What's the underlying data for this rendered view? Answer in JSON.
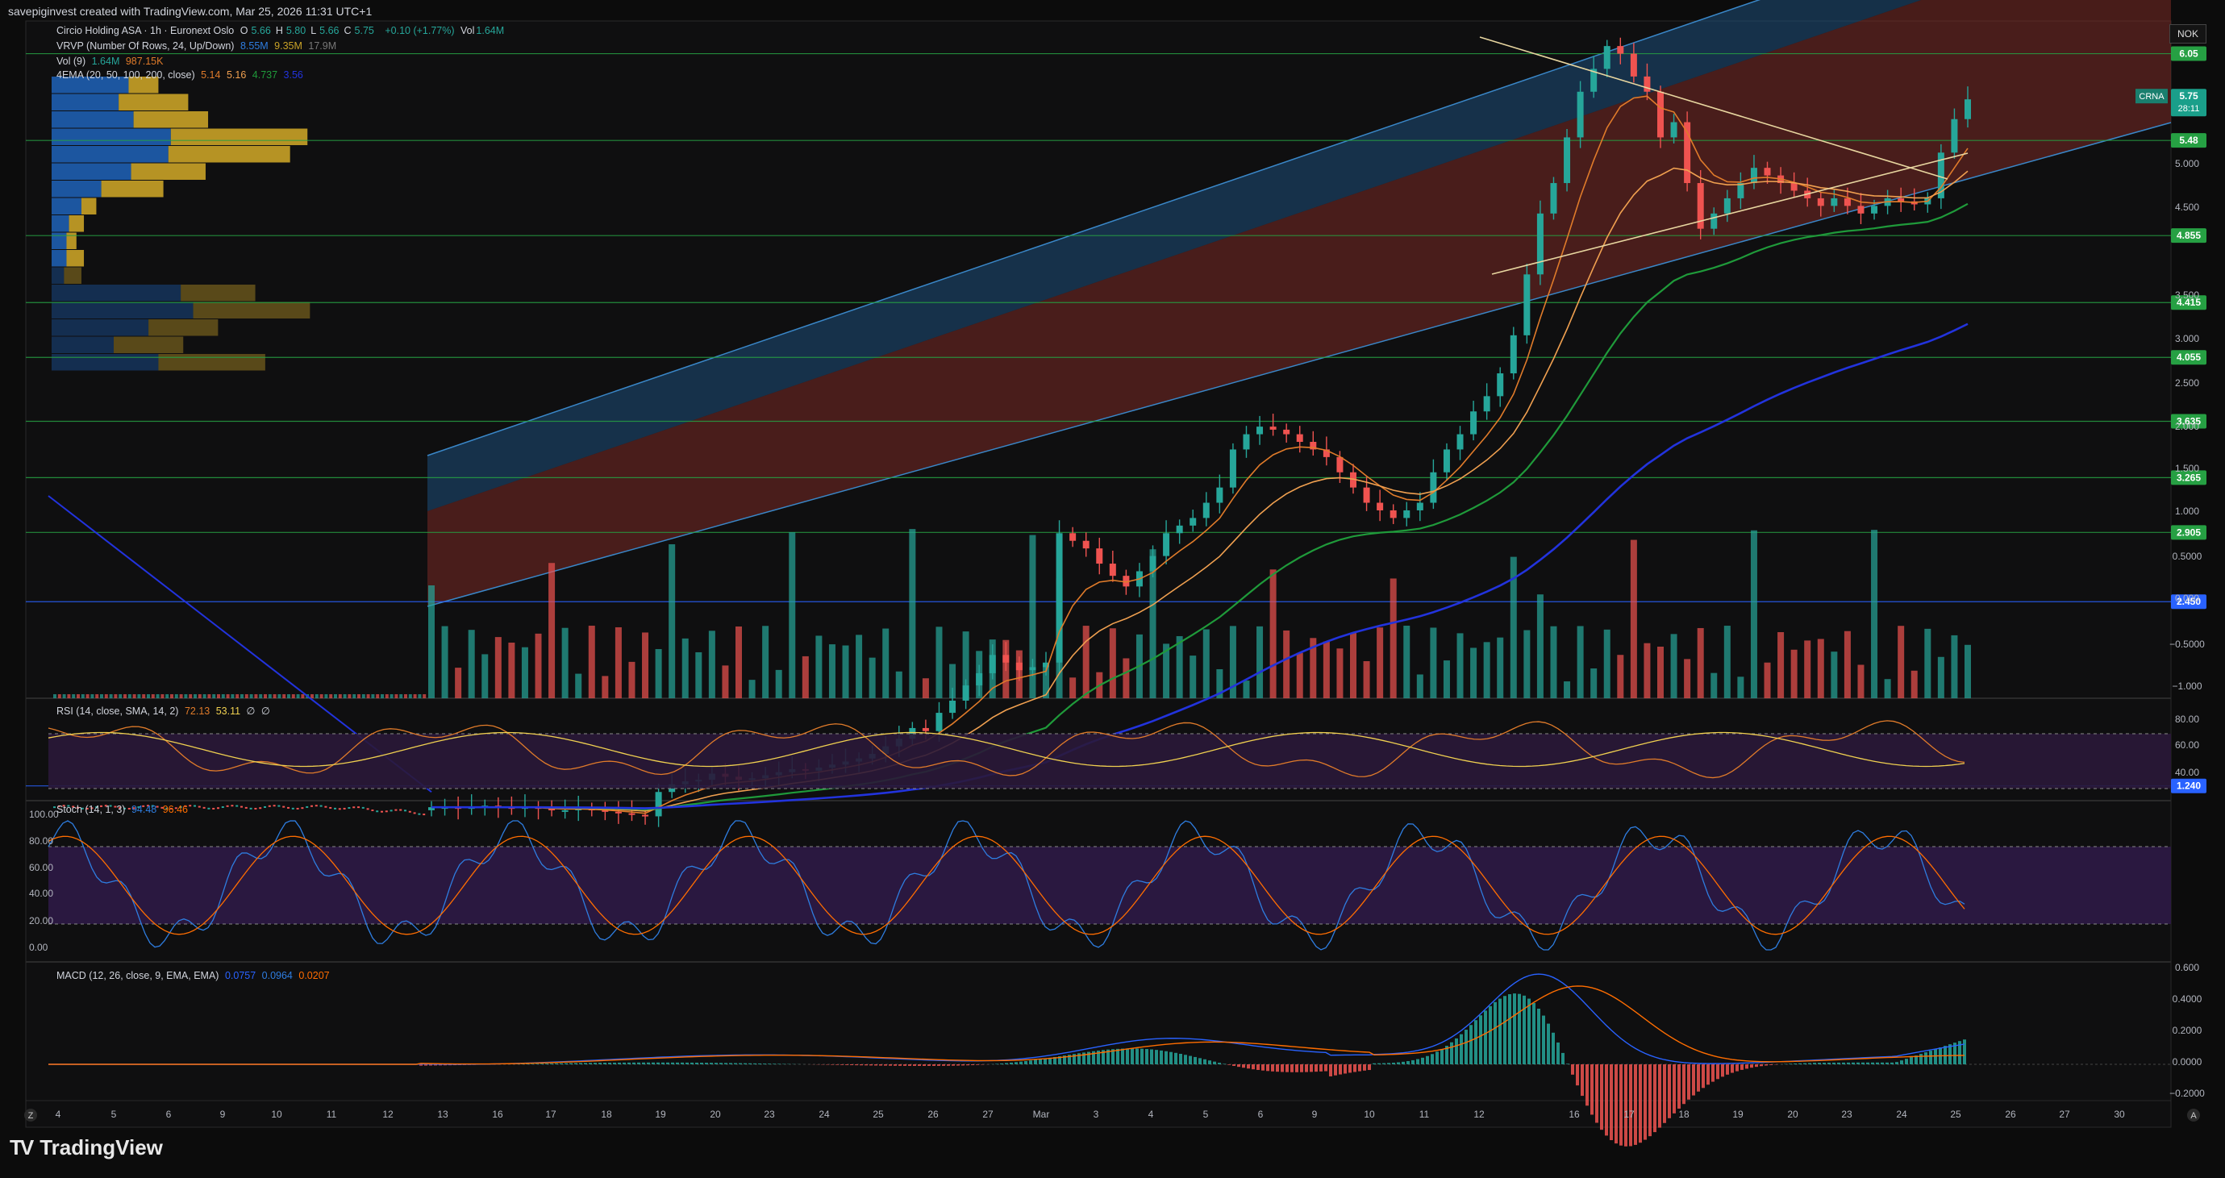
{
  "header": {
    "created_by": "savepiginvest created with TradingView.com, Mar 25, 2026 11:31 UTC+1"
  },
  "symbol": {
    "title": "Circio Holding ASA · 1h · Euronext Oslo",
    "ohlc": [
      {
        "k": "O",
        "v": "5.66"
      },
      {
        "k": "H",
        "v": "5.80"
      },
      {
        "k": "L",
        "v": "5.66"
      },
      {
        "k": "C",
        "v": "5.75"
      }
    ],
    "change": "+0.10 (+1.77%)",
    "vol_label": "Vol",
    "vol_value": "1.64M",
    "currency": "NOK",
    "ticker": "CRNA",
    "last_price": "5.75",
    "countdown": "28:11"
  },
  "indicators": {
    "vrvp": {
      "label": "VRVP (Number Of Rows, 24, Up/Down)",
      "v1": "8.55M",
      "v2": "9.35M",
      "v3": "17.9M"
    },
    "vol": {
      "label": "Vol (9)",
      "v1": "1.64M",
      "v2": "987.15K"
    },
    "ema": {
      "label": "4EMA (20, 50, 100, 200, close)",
      "v1": "5.14",
      "v2": "5.16",
      "v3": "4.737",
      "v4": "3.56"
    },
    "rsi": {
      "label": "RSI (14, close, SMA, 14, 2)",
      "v1": "72.13",
      "v2": "53.11",
      "v3": "∅",
      "v4": "∅"
    },
    "stoch": {
      "label": "Stoch (14, 1, 3)",
      "v1": "94.48",
      "v2": "96.46"
    },
    "macd": {
      "label": "MACD (12, 26, close, 9, EMA, EMA)",
      "v1": "0.0757",
      "v2": "0.0964",
      "v3": "0.0207"
    }
  },
  "colors": {
    "up": "#26a69a",
    "down": "#ef5350",
    "ema20": "#e07b2a",
    "ema50": "#f0a050",
    "ema100": "#1f9a3a",
    "ema200": "#2233dd",
    "vp_up": "#1e5eb0",
    "vp_down": "#c9a227",
    "channel_upper": "#1e4f7a",
    "channel_lower": "#7a2a24",
    "rsi_band": "#2a1838",
    "stoch_band": "#2d1a46",
    "macd_line": "#2962ff",
    "signal_line": "#ff6d00"
  },
  "chart_data": {
    "type": "candlestick",
    "timeframe": "1h",
    "price_axis": {
      "ticks": [
        "5.000",
        "4.500",
        "3.500",
        "3.000",
        "2.500",
        "2.000",
        "1.500",
        "1.000",
        "0.5000",
        "0.000",
        "−0.5000",
        "−1.000"
      ]
    },
    "horizontal_levels": [
      {
        "value": 6.05,
        "label": "6.05",
        "color": "#26a043"
      },
      {
        "value": 5.48,
        "label": "5.48",
        "color": "#26a043"
      },
      {
        "value": 4.855,
        "label": "4.855",
        "color": "#26a043"
      },
      {
        "value": 4.415,
        "label": "4.415",
        "color": "#26a043"
      },
      {
        "value": 4.055,
        "label": "4.055",
        "color": "#26a043"
      },
      {
        "value": 3.635,
        "label": "3.635",
        "color": "#26a043"
      },
      {
        "value": 3.265,
        "label": "3.265",
        "color": "#26a043"
      },
      {
        "value": 2.905,
        "label": "2.905",
        "color": "#26a043"
      },
      {
        "value": 2.45,
        "label": "2.450",
        "color": "#2962ff"
      },
      {
        "value": 1.24,
        "label": "1.240",
        "color": "#2962ff"
      }
    ],
    "x_ticks": [
      "4",
      "5",
      "6",
      "9",
      "10",
      "11",
      "12",
      "13",
      "16",
      "17",
      "18",
      "19",
      "20",
      "23",
      "24",
      "25",
      "26",
      "27",
      "Mar",
      "3",
      "4",
      "5",
      "6",
      "9",
      "10",
      "11",
      "12",
      "16",
      "17",
      "18",
      "19",
      "20",
      "23",
      "24",
      "25",
      "26",
      "27",
      "30"
    ],
    "price_series": [
      1.1,
      1.1,
      1.09,
      1.1,
      1.11,
      1.1,
      1.09,
      1.1,
      1.09,
      1.08,
      1.08,
      1.09,
      1.08,
      1.07,
      1.06,
      1.05,
      1.04,
      1.2,
      1.25,
      1.27,
      1.28,
      1.32,
      1.3,
      1.28,
      1.29,
      1.31,
      1.33,
      1.35,
      1.34,
      1.36,
      1.38,
      1.4,
      1.42,
      1.45,
      1.5,
      1.55,
      1.62,
      1.6,
      1.72,
      1.8,
      1.9,
      1.98,
      2.1,
      2.05,
      2.0,
      2.02,
      2.05,
      2.9,
      2.85,
      2.8,
      2.7,
      2.62,
      2.55,
      2.65,
      2.75,
      2.9,
      2.95,
      3.0,
      3.1,
      3.2,
      3.45,
      3.55,
      3.6,
      3.58,
      3.55,
      3.5,
      3.45,
      3.4,
      3.3,
      3.2,
      3.1,
      3.05,
      3.0,
      3.05,
      3.1,
      3.3,
      3.45,
      3.55,
      3.7,
      3.8,
      3.95,
      4.2,
      4.6,
      5.0,
      5.2,
      5.5,
      5.8,
      5.95,
      6.1,
      6.05,
      5.9,
      5.8,
      5.5,
      5.6,
      5.2,
      4.9,
      5.0,
      5.1,
      5.2,
      5.3,
      5.25,
      5.2,
      5.15,
      5.1,
      5.05,
      5.1,
      5.05,
      5.0,
      5.05,
      5.1,
      5.08,
      5.06,
      5.1,
      5.4,
      5.62,
      5.75
    ],
    "rsi_axis": [
      "80.00",
      "60.00",
      "40.00"
    ],
    "stoch_axis": [
      "100.00",
      "80.00",
      "60.00",
      "40.00",
      "20.00",
      "0.00"
    ],
    "macd_axis": [
      "0.600",
      "0.4000",
      "0.2000",
      "0.0000",
      "−0.2000"
    ],
    "volume_profile": [
      {
        "up": 0.31,
        "down": 0.12
      },
      {
        "up": 0.27,
        "down": 0.28
      },
      {
        "up": 0.33,
        "down": 0.3
      },
      {
        "up": 0.48,
        "down": 0.55
      },
      {
        "up": 0.47,
        "down": 0.49
      },
      {
        "up": 0.32,
        "down": 0.3
      },
      {
        "up": 0.2,
        "down": 0.25
      },
      {
        "up": 0.12,
        "down": 0.06
      },
      {
        "up": 0.07,
        "down": 0.06
      },
      {
        "up": 0.06,
        "down": 0.04
      },
      {
        "up": 0.06,
        "down": 0.07
      },
      {
        "up": 0.05,
        "down": 0.07
      },
      {
        "up": 0.52,
        "down": 0.3
      },
      {
        "up": 0.57,
        "down": 0.47
      },
      {
        "up": 0.39,
        "down": 0.28
      },
      {
        "up": 0.25,
        "down": 0.28
      },
      {
        "up": 0.43,
        "down": 0.43
      }
    ]
  },
  "timeline": {
    "left_btn": "Z",
    "right_btn": "A"
  },
  "brand": {
    "name": "TradingView",
    "logo": "TV"
  }
}
